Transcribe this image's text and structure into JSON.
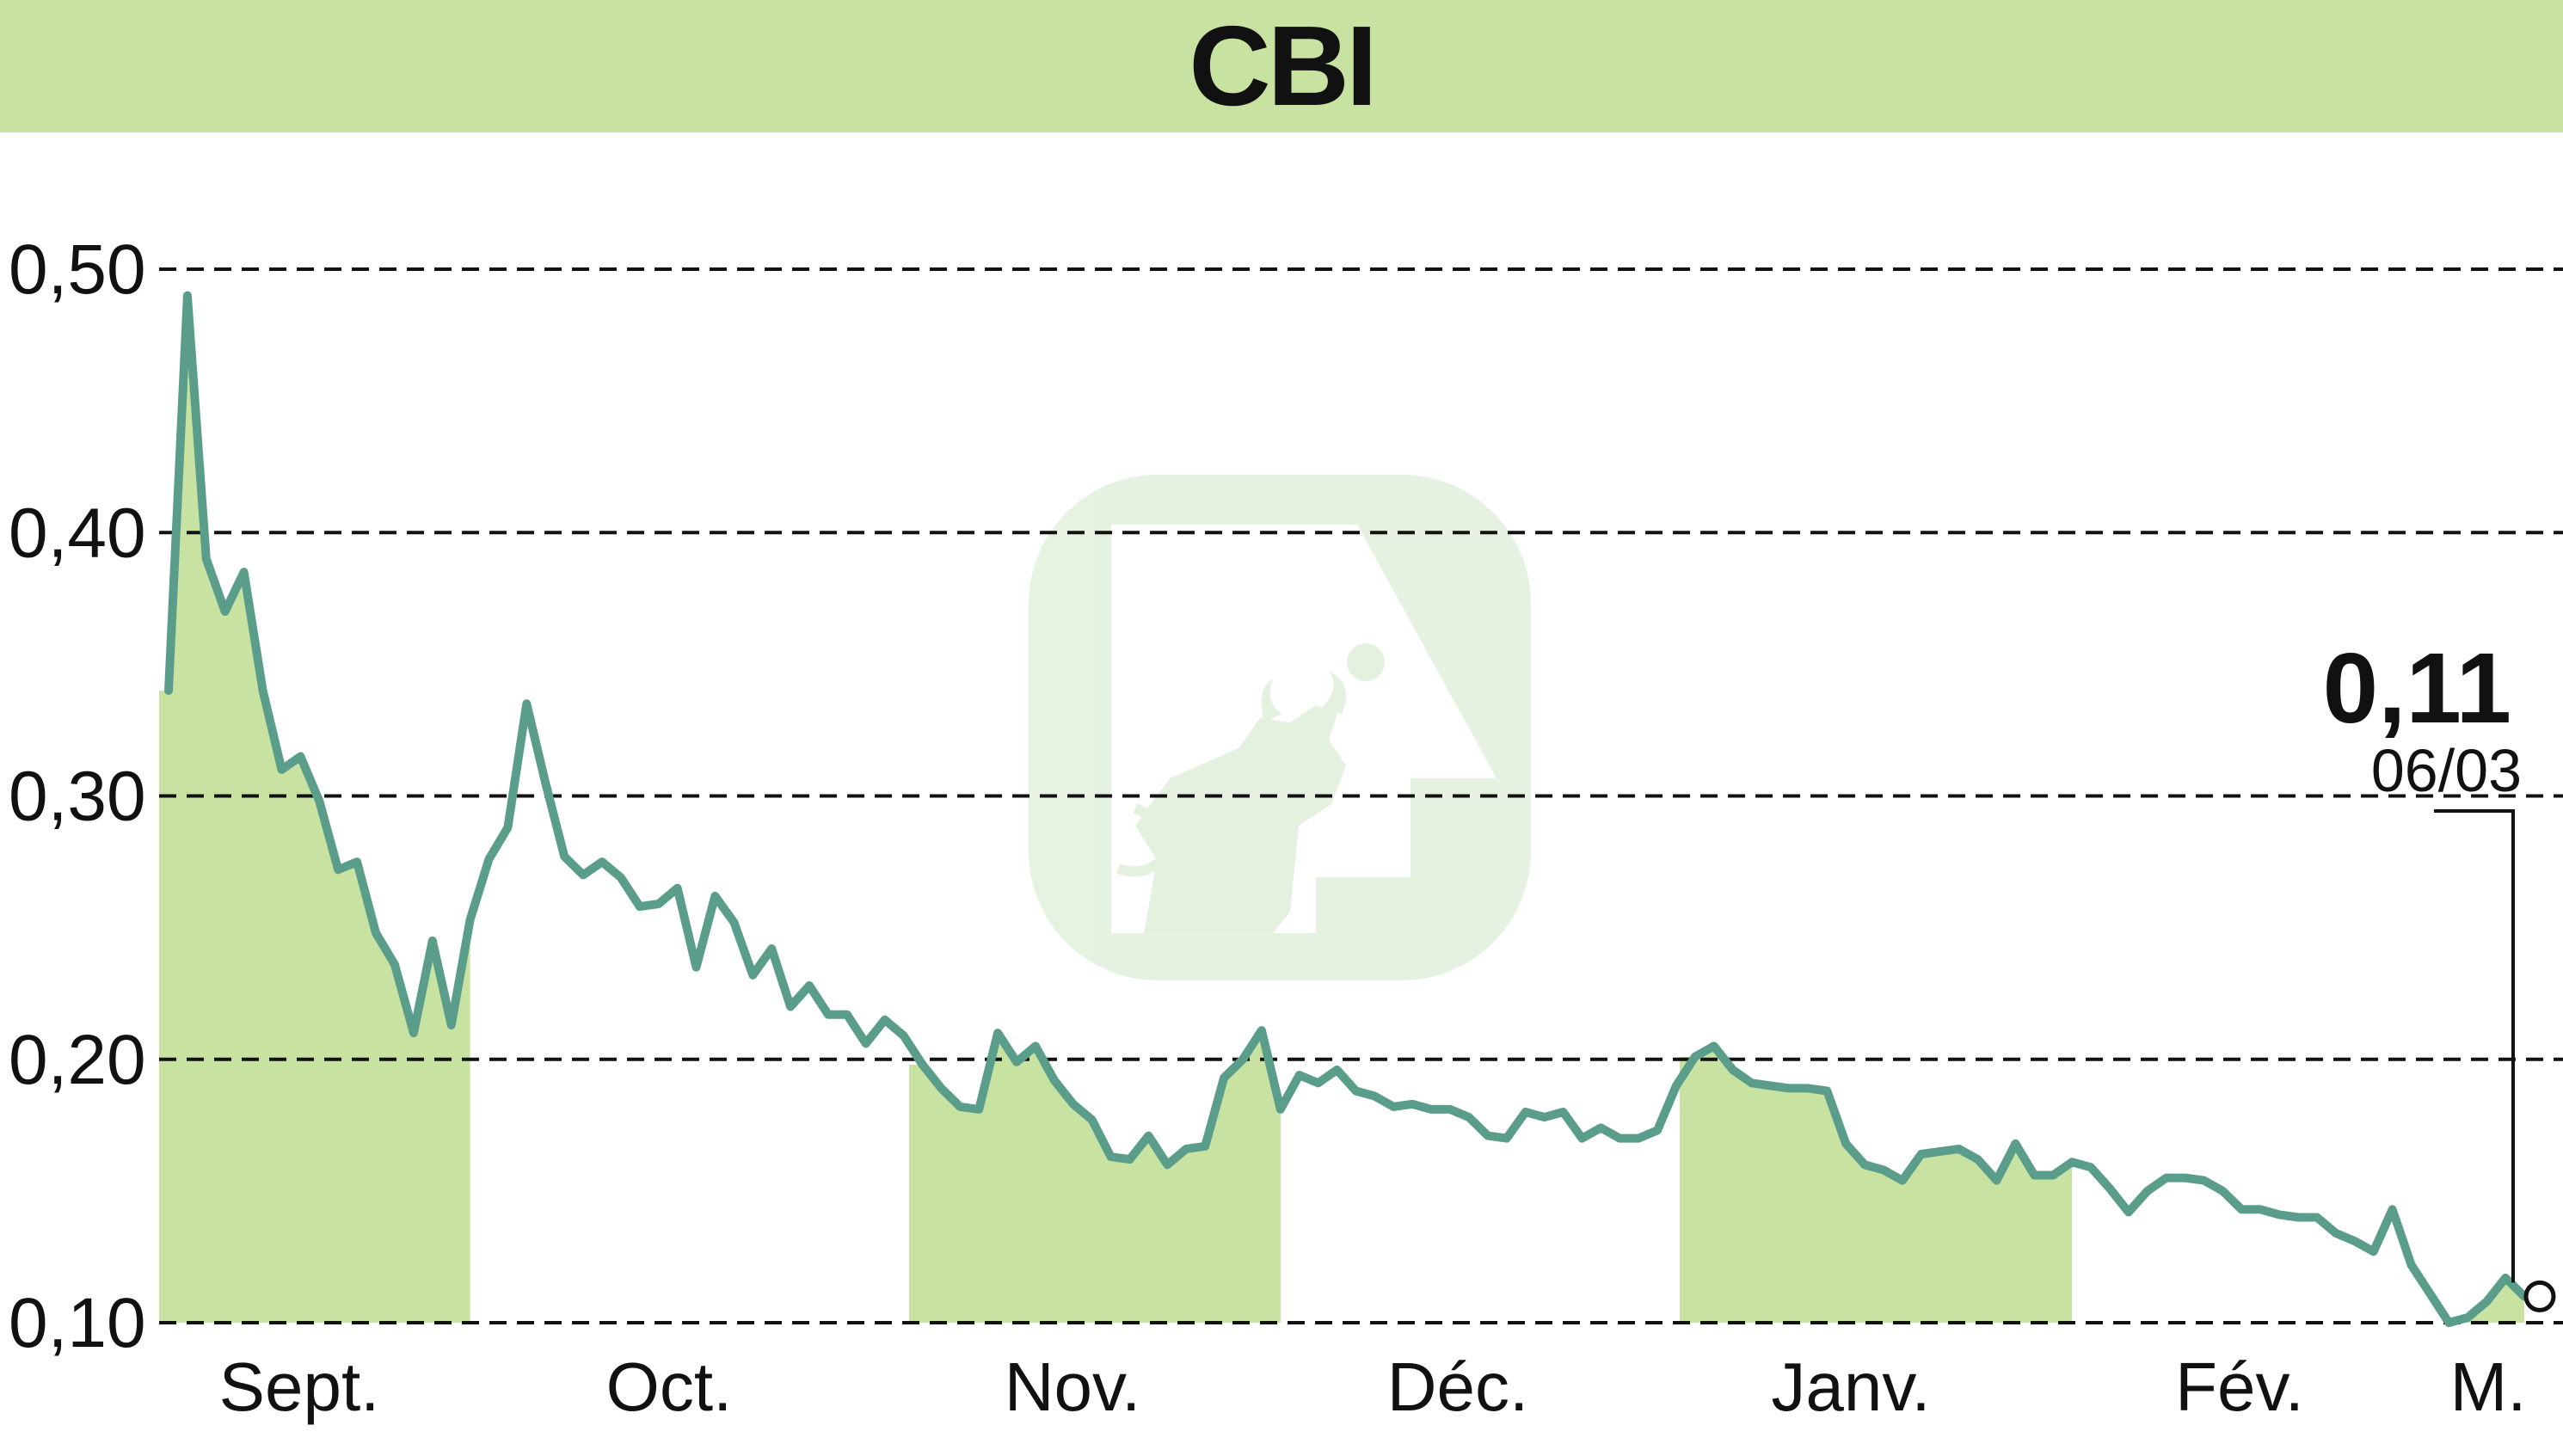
{
  "title": "CBI",
  "colors": {
    "title_bar": "#c8e2a2",
    "line": "#5a9d8a",
    "month_band": "#c8e2a2",
    "grid": "#111111",
    "watermark": "#cfe6c6"
  },
  "watermark": {
    "icon": "bull-logo-icon"
  },
  "chart_data": {
    "type": "area",
    "title": "CBI",
    "xlabel": "",
    "ylabel": "",
    "ylim": [
      0.1,
      0.5
    ],
    "yticks": [
      0.1,
      0.2,
      0.3,
      0.4,
      0.5
    ],
    "ytick_labels": [
      "0,10",
      "0,20",
      "0,30",
      "0,40",
      "0,50"
    ],
    "grid": true,
    "grid_style": "dashed horizontal",
    "month_labels": [
      "Sept.",
      "Oct.",
      "Nov.",
      "Déc.",
      "Janv.",
      "Fév.",
      "M."
    ],
    "shaded_months": [
      "Sept.",
      "Nov.",
      "Janv.",
      "M."
    ],
    "last_value_label": "0,11",
    "last_date_label": "06/03",
    "series": [
      {
        "values": [
          0.34,
          0.49,
          0.39,
          0.37,
          0.385,
          0.34,
          0.31,
          0.315,
          0.298,
          0.272,
          0.275,
          0.248,
          0.236,
          0.21,
          0.245,
          0.213,
          0.253,
          0.276,
          0.288,
          0.335,
          0.305,
          0.277,
          0.27,
          0.275,
          0.269,
          0.258,
          0.259,
          0.265,
          0.235,
          0.262,
          0.252,
          0.232,
          0.242,
          0.22,
          0.228,
          0.217,
          0.217,
          0.206,
          0.215,
          0.209,
          0.198,
          0.189,
          0.182,
          0.181,
          0.21,
          0.199,
          0.205,
          0.192,
          0.183,
          0.177,
          0.163,
          0.162,
          0.171,
          0.16,
          0.166,
          0.167,
          0.193,
          0.2,
          0.211,
          0.181,
          0.194,
          0.191,
          0.196,
          0.188,
          0.186,
          0.182,
          0.183,
          0.181,
          0.181,
          0.178,
          0.171,
          0.17,
          0.18,
          0.178,
          0.18,
          0.17,
          0.174,
          0.17,
          0.17,
          0.173,
          0.19,
          0.201,
          0.205,
          0.196,
          0.191,
          0.19,
          0.189,
          0.189,
          0.188,
          0.168,
          0.16,
          0.158,
          0.154,
          0.164,
          0.165,
          0.166,
          0.162,
          0.154,
          0.168,
          0.156,
          0.156,
          0.161,
          0.159,
          0.151,
          0.142,
          0.15,
          0.155,
          0.155,
          0.154,
          0.15,
          0.143,
          0.143,
          0.141,
          0.14,
          0.14,
          0.134,
          0.131,
          0.127,
          0.143,
          0.122,
          0.111,
          0.1,
          0.102,
          0.108,
          0.117,
          0.11
        ]
      }
    ]
  }
}
